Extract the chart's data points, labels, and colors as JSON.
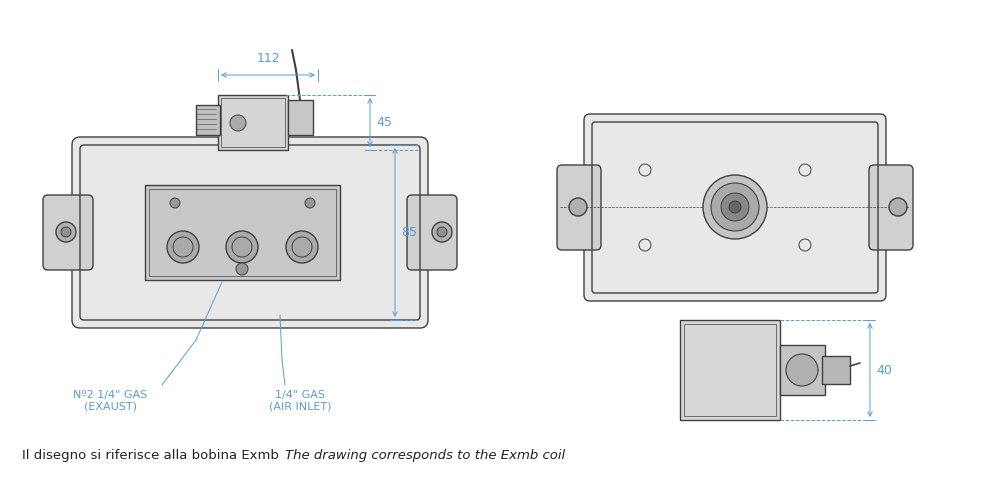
{
  "bg_color": "#ffffff",
  "line_color": "#404040",
  "dim_color": "#5b9bd5",
  "label_color": "#5b9bd5",
  "text_color": "#222222",
  "italic_text_color": "#222222",
  "note_text": "Il disegno si riferisce alla bobina Exmb",
  "note_italic": "The drawing corresponds to the Exmb coil",
  "dim_112_label": "112",
  "dim_45_label": "45",
  "dim_85_label": "85",
  "dim_40_label": "40",
  "label1": "Nº2 1/4\" GAS\n(EXAUST)",
  "label2": "1/4\" GAS\n(AIR INLET)"
}
